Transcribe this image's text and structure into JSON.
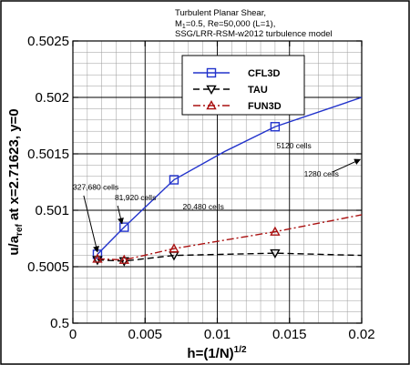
{
  "chart_data": {
    "type": "line",
    "title_lines": [
      "Turbulent Planar Shear,",
      "M",
      "=0.5, Re=50,000 (L=1),",
      "SSG/LRR-RSM-w2012 turbulence model"
    ],
    "title_subscript": "1",
    "xlabel": "h=(1/N)",
    "xlabel_sup": "1/2",
    "ylabel_prefix": "u/a",
    "ylabel_sub": "ref",
    "ylabel_suffix": " at x=2.71623, y=0",
    "xlim": [
      0,
      0.02
    ],
    "ylim": [
      0.5,
      0.5025
    ],
    "x_ticks": [
      0,
      0.005,
      0.01,
      0.015,
      0.02
    ],
    "x_tick_labels": [
      "0",
      "0.005",
      "0.01",
      "0.015",
      "0.02"
    ],
    "y_ticks": [
      0.5,
      0.5005,
      0.501,
      0.5015,
      0.502,
      0.5025
    ],
    "y_tick_labels": [
      "0.5",
      "0.5005",
      "0.501",
      "0.5015",
      "0.502",
      "0.5025"
    ],
    "x_minor_step": 0.001,
    "y_minor_step": 0.0001,
    "grid": true,
    "legend_position": "top-right",
    "series": [
      {
        "name": "CFL3D",
        "color": "#2233cc",
        "marker": "square",
        "dash": "solid",
        "points_x": [
          0.0017,
          0.00355,
          0.007,
          0.014
        ],
        "points_y": [
          0.50061,
          0.50085,
          0.50127,
          0.50174
        ],
        "line_x": [
          0.0017,
          0.00355,
          0.007,
          0.0105,
          0.014,
          0.02
        ],
        "line_y": [
          0.50061,
          0.50085,
          0.50127,
          0.50152,
          0.50174,
          0.502
        ]
      },
      {
        "name": "TAU",
        "color": "#000000",
        "marker": "triangle-down",
        "dash": "dashed",
        "points_x": [
          0.0017,
          0.00355,
          0.007,
          0.014
        ],
        "points_y": [
          0.50056,
          0.50055,
          0.5006,
          0.50062
        ],
        "line_x": [
          0.0017,
          0.00355,
          0.007,
          0.014,
          0.02
        ],
        "line_y": [
          0.50056,
          0.50055,
          0.5006,
          0.50062,
          0.5006
        ]
      },
      {
        "name": "FUN3D",
        "color": "#aa1111",
        "marker": "triangle-up",
        "dash": "dashdot",
        "points_x": [
          0.0017,
          0.00355,
          0.007,
          0.014
        ],
        "points_y": [
          0.50057,
          0.50056,
          0.50066,
          0.50081
        ],
        "line_x": [
          0.0017,
          0.00355,
          0.007,
          0.014,
          0.02
        ],
        "line_y": [
          0.50057,
          0.50056,
          0.50066,
          0.50081,
          0.50096
        ]
      }
    ],
    "annotations": [
      {
        "text": "327,680 cells",
        "x": 0.0,
        "y": 0.50118,
        "arrow_from": [
          0.00075,
          0.50113
        ],
        "arrow_to": [
          0.0017,
          0.50063
        ]
      },
      {
        "text": "81,920 cells",
        "x": 0.0029,
        "y": 0.50109,
        "arrow_from": [
          0.0031,
          0.50104
        ],
        "arrow_to": [
          0.0034,
          0.50088
        ]
      },
      {
        "text": "20,480 cells",
        "x": 0.0076,
        "y": 0.50101
      },
      {
        "text": "5120 cells",
        "x": 0.0141,
        "y": 0.50155
      },
      {
        "text": "1280 cells",
        "x": 0.016,
        "y": 0.5013,
        "arrow_from": [
          0.018,
          0.50134
        ],
        "arrow_to": [
          0.0199,
          0.50145
        ]
      }
    ]
  }
}
